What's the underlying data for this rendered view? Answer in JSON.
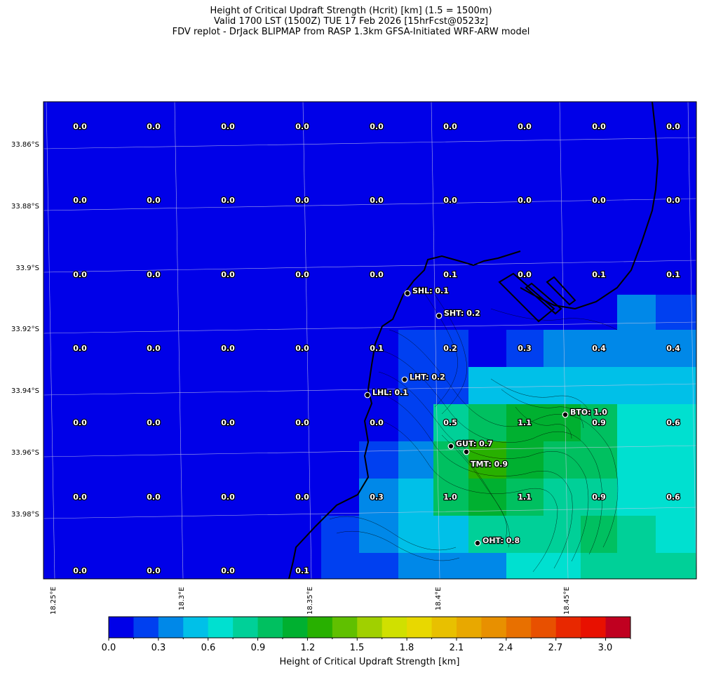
{
  "title": {
    "line1": "Height of Critical Updraft Strength (Hcrit) [km] (1.5 = 1500m)",
    "line2": "Valid 1700 LST (1500Z) TUE 17 Feb 2026 [15hrFcst@0523z]",
    "line3": "FDV replot - DrJack BLIPMAP from RASP 1.3km GFSA-Initiated WRF-ARW model"
  },
  "lat_ticks": [
    "33.86°S",
    "33.88°S",
    "33.9°S",
    "33.92°S",
    "33.94°S",
    "33.96°S",
    "33.98°S"
  ],
  "lon_ticks": [
    "18.25°E",
    "18.3°E",
    "18.35°E",
    "18.4°E",
    "18.45°E"
  ],
  "grid_values": [
    [
      "0.0",
      "0.0",
      "0.0",
      "0.0",
      "0.0",
      "0.0",
      "0.0",
      "0.0",
      "0.0"
    ],
    [
      "0.0",
      "0.0",
      "0.0",
      "0.0",
      "0.0",
      "0.0",
      "0.0",
      "0.0",
      "0.0"
    ],
    [
      "0.0",
      "0.0",
      "0.0",
      "0.0",
      "0.0",
      "0.1",
      "0.0",
      "0.1",
      "0.1"
    ],
    [
      "0.0",
      "0.0",
      "0.0",
      "0.0",
      "0.1",
      "0.2",
      "0.3",
      "0.4",
      "0.4"
    ],
    [
      "0.0",
      "0.0",
      "0.0",
      "0.0",
      "0.0",
      "0.5",
      "1.1",
      "0.9",
      "0.6"
    ],
    [
      "0.0",
      "0.0",
      "0.0",
      "0.0",
      "0.3",
      "1.0",
      "1.1",
      "0.9",
      "0.6"
    ],
    [
      "0.0",
      "0.0",
      "0.0",
      "0.1",
      "",
      "",
      "",
      "",
      ""
    ]
  ],
  "stations": [
    {
      "code": "SHL",
      "label": "SHL: 0.1",
      "value": 0.1
    },
    {
      "code": "SHT",
      "label": "SHT: 0.2",
      "value": 0.2
    },
    {
      "code": "LHT",
      "label": "LHT: 0.2",
      "value": 0.2
    },
    {
      "code": "LHL",
      "label": "LHL: 0.1",
      "value": 0.1
    },
    {
      "code": "BTO",
      "label": "BTO: 1.0",
      "value": 1.0
    },
    {
      "code": "GUT",
      "label": "GUT: 0.7",
      "value": 0.7
    },
    {
      "code": "TMT",
      "label": "TMT: 0.9",
      "value": 0.9
    },
    {
      "code": "OHT",
      "label": "OHT: 0.8",
      "value": 0.8
    }
  ],
  "colorbar": {
    "label": "Height of Critical Updraft Strength [km]",
    "ticks": [
      "0.0",
      "0.3",
      "0.6",
      "0.9",
      "1.2",
      "1.5",
      "1.8",
      "2.1",
      "2.4",
      "2.7",
      "3.0"
    ],
    "colors": [
      "#0000e8",
      "#0040f0",
      "#0088e8",
      "#00c0e8",
      "#00e0d0",
      "#00d098",
      "#00c060",
      "#00b030",
      "#28b000",
      "#60c000",
      "#a0d000",
      "#d0e000",
      "#e8d800",
      "#e8c000",
      "#e8a800",
      "#e89000",
      "#e87000",
      "#e85000",
      "#e82800",
      "#e81000",
      "#c00020"
    ],
    "range": [
      0.0,
      3.15
    ],
    "step": 0.15
  },
  "colors": {
    "sea": "#0000e8",
    "coast": "#000000",
    "gridline": "#c8c8e8"
  }
}
